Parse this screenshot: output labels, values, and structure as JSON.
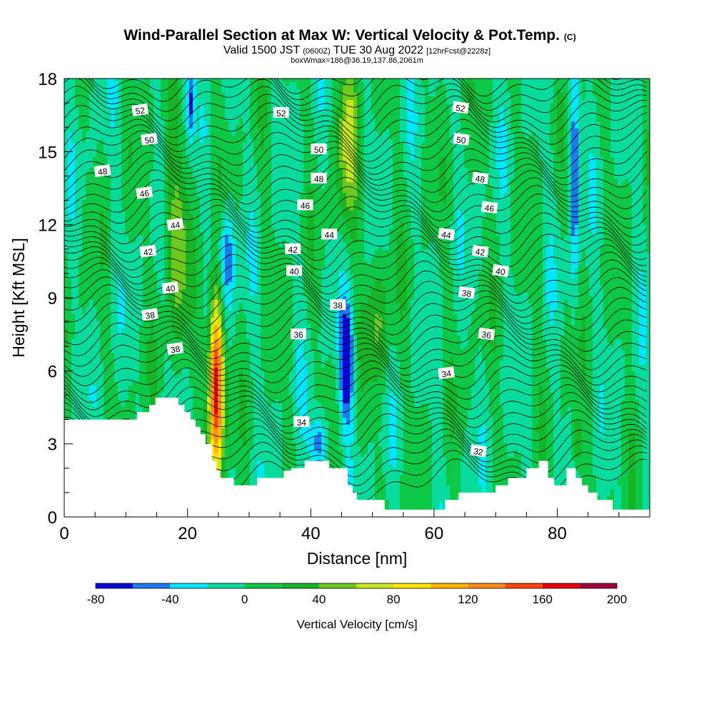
{
  "chart_data": {
    "type": "heatmap",
    "title": "Wind-Parallel Section at Max W: Vertical Velocity & Pot.Temp.",
    "title_mark": "(C)",
    "subtitle": {
      "part1": "Valid 1500 JST",
      "part2": "(0600Z)",
      "part3": "TUE 30 Aug 2022",
      "part4": "[12hrFcst@2228z]"
    },
    "subtitle2": "boxWmax=186@36.19,137.86,2061m",
    "xlabel": "Distance [nm]",
    "ylabel": "Height [Kft MSL]",
    "xlim": [
      0,
      95
    ],
    "ylim": [
      0,
      18
    ],
    "xticks": [
      "0",
      "20",
      "40",
      "60",
      "80"
    ],
    "xtick_values": [
      0,
      20,
      40,
      60,
      80
    ],
    "yticks": [
      "0",
      "3",
      "6",
      "9",
      "12",
      "15",
      "18"
    ],
    "ytick_values": [
      0,
      3,
      6,
      9,
      12,
      15,
      18
    ],
    "colorbar": {
      "label": "Vertical Velocity [cm/s]",
      "ticks": [
        "-80",
        "-40",
        "0",
        "40",
        "80",
        "120",
        "160",
        "200"
      ],
      "tick_values": [
        -80,
        -40,
        0,
        40,
        80,
        120,
        160,
        200
      ],
      "bounds": [
        -80,
        -60,
        -40,
        -20,
        0,
        20,
        40,
        60,
        80,
        100,
        120,
        140,
        160,
        180,
        200
      ],
      "colors": [
        "#0a0ad8",
        "#1e78f0",
        "#00e6ff",
        "#08dc9c",
        "#0cc846",
        "#18b428",
        "#6ec81e",
        "#c8e61e",
        "#ffe600",
        "#ffb400",
        "#ff8c14",
        "#ff460a",
        "#e6000a",
        "#a0003c",
        "#6e00a0"
      ]
    },
    "theta_contour_labels": [
      {
        "text": "52",
        "x": 12.3,
        "y": 16.7
      },
      {
        "text": "52",
        "x": 35.2,
        "y": 16.6
      },
      {
        "text": "52",
        "x": 64.3,
        "y": 16.8
      },
      {
        "text": "50",
        "x": 13.8,
        "y": 15.5
      },
      {
        "text": "50",
        "x": 41.3,
        "y": 15.1
      },
      {
        "text": "50",
        "x": 64.4,
        "y": 15.5
      },
      {
        "text": "48",
        "x": 6.2,
        "y": 14.2
      },
      {
        "text": "48",
        "x": 41.3,
        "y": 13.9
      },
      {
        "text": "48",
        "x": 67.5,
        "y": 13.9
      },
      {
        "text": "46",
        "x": 13.0,
        "y": 13.3
      },
      {
        "text": "46",
        "x": 39.1,
        "y": 12.8
      },
      {
        "text": "46",
        "x": 69.0,
        "y": 12.7
      },
      {
        "text": "44",
        "x": 18.0,
        "y": 12.0
      },
      {
        "text": "44",
        "x": 43.0,
        "y": 11.6
      },
      {
        "text": "44",
        "x": 62.0,
        "y": 11.6
      },
      {
        "text": "42",
        "x": 13.6,
        "y": 10.9
      },
      {
        "text": "42",
        "x": 37.1,
        "y": 11.0
      },
      {
        "text": "42",
        "x": 67.5,
        "y": 10.9
      },
      {
        "text": "40",
        "x": 17.2,
        "y": 9.4
      },
      {
        "text": "40",
        "x": 37.3,
        "y": 10.1
      },
      {
        "text": "40",
        "x": 70.8,
        "y": 10.1
      },
      {
        "text": "38",
        "x": 13.9,
        "y": 8.3
      },
      {
        "text": "38",
        "x": 44.4,
        "y": 8.7
      },
      {
        "text": "38",
        "x": 65.3,
        "y": 9.2
      },
      {
        "text": "38",
        "x": 18.0,
        "y": 6.9
      },
      {
        "text": "36",
        "x": 38.0,
        "y": 7.5
      },
      {
        "text": "36",
        "x": 68.5,
        "y": 7.5
      },
      {
        "text": "34",
        "x": 62.0,
        "y": 5.9
      },
      {
        "text": "34",
        "x": 38.5,
        "y": 3.9
      },
      {
        "text": "32",
        "x": 67.2,
        "y": 2.7
      }
    ],
    "terrain_height_kft": [
      [
        0,
        4.0
      ],
      [
        11.8,
        4.0
      ],
      [
        11.8,
        4.3
      ],
      [
        13.8,
        4.3
      ],
      [
        13.8,
        4.6
      ],
      [
        14.8,
        4.6
      ],
      [
        14.8,
        4.9
      ],
      [
        18.5,
        4.9
      ],
      [
        18.5,
        4.6
      ],
      [
        19.5,
        4.6
      ],
      [
        19.5,
        4.3
      ],
      [
        20.5,
        4.3
      ],
      [
        20.5,
        4.0
      ],
      [
        21.3,
        4.0
      ],
      [
        21.3,
        3.7
      ],
      [
        22.1,
        3.7
      ],
      [
        22.1,
        3.4
      ],
      [
        22.9,
        3.4
      ],
      [
        22.9,
        3.0
      ],
      [
        24.0,
        3.0
      ],
      [
        24.0,
        2.3
      ],
      [
        24.7,
        2.3
      ],
      [
        24.7,
        1.9
      ],
      [
        25.3,
        1.9
      ],
      [
        25.3,
        1.6
      ],
      [
        27.5,
        1.6
      ],
      [
        27.5,
        1.3
      ],
      [
        31.3,
        1.3
      ],
      [
        31.3,
        1.6
      ],
      [
        35.6,
        1.6
      ],
      [
        35.6,
        1.9
      ],
      [
        36.8,
        1.9
      ],
      [
        36.8,
        2.0
      ],
      [
        39.0,
        2.0
      ],
      [
        39.0,
        2.3
      ],
      [
        43.0,
        2.3
      ],
      [
        43.0,
        2.0
      ],
      [
        46.0,
        2.0
      ],
      [
        46.0,
        1.3
      ],
      [
        46.8,
        1.3
      ],
      [
        46.8,
        1.0
      ],
      [
        47.5,
        1.0
      ],
      [
        47.5,
        0.7
      ],
      [
        52.0,
        0.7
      ],
      [
        52.0,
        0.3
      ],
      [
        61.8,
        0.3
      ],
      [
        61.8,
        0.7
      ],
      [
        64.0,
        0.7
      ],
      [
        64.0,
        1.0
      ],
      [
        70.0,
        1.0
      ],
      [
        70.0,
        1.3
      ],
      [
        72.0,
        1.3
      ],
      [
        72.0,
        1.6
      ],
      [
        75.0,
        1.6
      ],
      [
        75.0,
        2.0
      ],
      [
        77.0,
        2.0
      ],
      [
        77.0,
        2.3
      ],
      [
        78.5,
        2.3
      ],
      [
        78.5,
        1.6
      ],
      [
        79.5,
        1.6
      ],
      [
        79.5,
        1.3
      ],
      [
        81.5,
        1.3
      ],
      [
        81.5,
        2.0
      ],
      [
        83.0,
        2.0
      ],
      [
        83.0,
        1.6
      ],
      [
        84.0,
        1.6
      ],
      [
        84.0,
        1.3
      ],
      [
        85.0,
        1.3
      ],
      [
        85.0,
        1.0
      ],
      [
        86.5,
        1.0
      ],
      [
        86.5,
        0.7
      ],
      [
        89.0,
        0.7
      ],
      [
        89.0,
        0.3
      ],
      [
        95,
        0.3
      ],
      [
        95,
        0
      ],
      [
        0,
        0
      ]
    ],
    "w_features_cm_s": [
      {
        "x": 24.6,
        "y": 5.4,
        "sx": 0.85,
        "sy": 2.6,
        "w": 186
      },
      {
        "x": 18.2,
        "y": 11.5,
        "sx": 1.5,
        "sy": 2.8,
        "w": 48
      },
      {
        "x": 46.0,
        "y": 15.3,
        "sx": 1.3,
        "sy": 2.6,
        "w": 56
      },
      {
        "x": 51.0,
        "y": 8.0,
        "sx": 1.5,
        "sy": 1.8,
        "w": 36
      },
      {
        "x": 83.2,
        "y": 3.0,
        "sx": 0.6,
        "sy": 0.8,
        "w": 42
      },
      {
        "x": 45.8,
        "y": 6.3,
        "sx": 0.8,
        "sy": 1.7,
        "w": -88
      },
      {
        "x": 26.3,
        "y": 10.6,
        "sx": 0.9,
        "sy": 1.5,
        "w": -64
      },
      {
        "x": 82.8,
        "y": 14.5,
        "sx": 0.5,
        "sy": 3.5,
        "w": -60
      },
      {
        "x": 20.5,
        "y": 17.0,
        "sx": 0.5,
        "sy": 1.0,
        "w": -60
      },
      {
        "x": 41.3,
        "y": 3.0,
        "sx": 1.0,
        "sy": 0.8,
        "w": -58
      }
    ]
  }
}
